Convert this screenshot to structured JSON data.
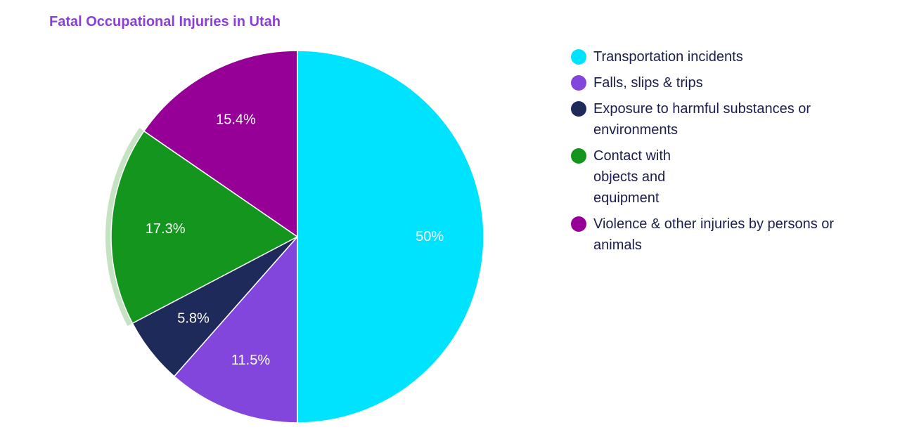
{
  "chart_data": {
    "type": "pie",
    "title": "Fatal Occupational Injuries in Utah",
    "title_color": "#8a3fd9",
    "slices": [
      {
        "name": "Transportation incidents",
        "value": 50,
        "label": "50%",
        "color": "#00e3ff"
      },
      {
        "name": "Falls, slips & trips",
        "value": 11.5,
        "label": "11.5%",
        "color": "#8346dc"
      },
      {
        "name": "Exposure to harmful substances or environments",
        "value": 5.8,
        "label": "5.8%",
        "color": "#1e2a5a"
      },
      {
        "name": "Contact with objects and equipment",
        "value": 17.3,
        "label": "17.3%",
        "color": "#14961e"
      },
      {
        "name": "Violence & other injuries by persons or animals",
        "value": 15.4,
        "label": "15.4%",
        "color": "#960096"
      }
    ],
    "highlighted_slice": "Contact with objects and equipment",
    "highlight_color": "#c5e2c3",
    "legend_position": "right"
  }
}
